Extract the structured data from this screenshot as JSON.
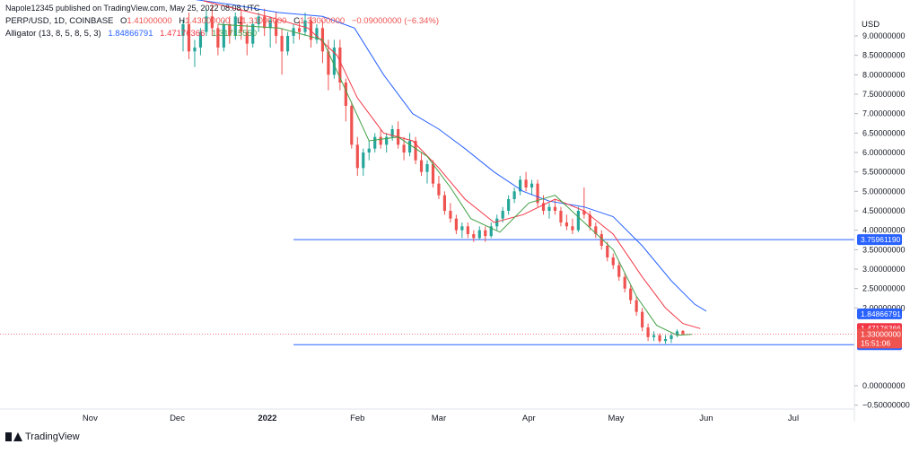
{
  "header": {
    "published": "Napole12345 published on TradingView.com, May 25, 2022 08:08 UTC",
    "symbol": "PERP/USD, 1D, COINBASE",
    "open_label": "O",
    "open": "1.41000000",
    "high_label": "H",
    "high": "1.43000000",
    "low_label": "L",
    "low": "1.31000000",
    "close_label": "C",
    "close": "1.33000000",
    "change": "−0.09000000 (−6.34%)",
    "alligator_label": "Alligator (13, 8, 5, 8, 5, 3)",
    "alligator_jaw": "1.84866791",
    "alligator_teeth": "1.47176366",
    "alligator_lips": "1.31715550"
  },
  "footer": {
    "brand": "TradingView"
  },
  "colors": {
    "up": "#26a69a",
    "down": "#ef5350",
    "jaw": "#2962ff",
    "teeth": "#f23645",
    "lips": "#43a047",
    "hline": "#2962ff",
    "text": "#131722",
    "grid": "#f0f3fa"
  },
  "chart_data": {
    "type": "candlestick",
    "currency": "USD",
    "y_range": [
      -0.6,
      9.6
    ],
    "y_ticks": [
      "9.00000000",
      "8.50000000",
      "8.00000000",
      "7.50000000",
      "7.00000000",
      "6.50000000",
      "6.00000000",
      "5.50000000",
      "5.00000000",
      "4.50000000",
      "4.00000000",
      "3.50000000",
      "3.00000000",
      "2.50000000",
      "2.00000000",
      "0.00000000",
      "−0.50000000"
    ],
    "y_tick_values": [
      9.0,
      8.5,
      8.0,
      7.5,
      7.0,
      6.5,
      6.0,
      5.5,
      5.0,
      4.5,
      4.0,
      3.5,
      3.0,
      2.5,
      2.0,
      0.0,
      -0.5
    ],
    "x_ticks": [
      {
        "label": "Nov",
        "date": "2021-11-01"
      },
      {
        "label": "Dec",
        "date": "2021-12-01"
      },
      {
        "label": "2022",
        "date": "2022-01-01",
        "bold": true
      },
      {
        "label": "Feb",
        "date": "2022-02-01"
      },
      {
        "label": "Mar",
        "date": "2022-03-01"
      },
      {
        "label": "Apr",
        "date": "2022-04-01"
      },
      {
        "label": "May",
        "date": "2022-05-01"
      },
      {
        "label": "Jun",
        "date": "2022-06-01"
      },
      {
        "label": "Jul",
        "date": "2022-07-01"
      }
    ],
    "x_range": [
      "2021-10-01",
      "2022-07-22"
    ],
    "horizontal_lines": [
      {
        "value": 3.7596119,
        "label": "3.75961190",
        "from_date": "2022-01-10"
      },
      {
        "value": 1.05507797,
        "label": "1.05507797",
        "from_date": "2022-01-10"
      }
    ],
    "last_price": {
      "value": 1.33,
      "label": "1.33000000",
      "countdown": "15:51:06"
    },
    "price_labels": [
      {
        "value": 1.84866791,
        "label": "1.84866791",
        "color": "#2962ff"
      },
      {
        "value": 1.47176366,
        "label": "1.47176366",
        "color": "#f23645"
      },
      {
        "value": 1.3171555,
        "label": "1.31715550",
        "color": "#43a047"
      }
    ],
    "series": [
      {
        "name": "jaw",
        "kind": "line",
        "color": "#2962ff",
        "points": [
          [
            "2021-12-01",
            10.0
          ],
          [
            "2021-12-20",
            9.8
          ],
          [
            "2022-01-05",
            9.6
          ],
          [
            "2022-01-20",
            9.5
          ],
          [
            "2022-01-31",
            9.2
          ],
          [
            "2022-02-10",
            8.0
          ],
          [
            "2022-02-20",
            7.0
          ],
          [
            "2022-03-01",
            6.6
          ],
          [
            "2022-03-10",
            6.1
          ],
          [
            "2022-03-20",
            5.5
          ],
          [
            "2022-03-30",
            5.0
          ],
          [
            "2022-04-08",
            4.75
          ],
          [
            "2022-04-20",
            4.6
          ],
          [
            "2022-04-30",
            4.35
          ],
          [
            "2022-05-10",
            3.6
          ],
          [
            "2022-05-20",
            2.7
          ],
          [
            "2022-05-28",
            2.1
          ],
          [
            "2022-06-01",
            1.92
          ]
        ]
      },
      {
        "name": "teeth",
        "kind": "line",
        "color": "#f23645",
        "points": [
          [
            "2021-12-10",
            9.9
          ],
          [
            "2022-01-01",
            9.5
          ],
          [
            "2022-01-15",
            9.2
          ],
          [
            "2022-01-25",
            8.5
          ],
          [
            "2022-02-01",
            7.4
          ],
          [
            "2022-02-10",
            6.5
          ],
          [
            "2022-02-20",
            6.3
          ],
          [
            "2022-03-01",
            5.6
          ],
          [
            "2022-03-10",
            4.8
          ],
          [
            "2022-03-20",
            4.2
          ],
          [
            "2022-03-30",
            4.4
          ],
          [
            "2022-04-10",
            4.8
          ],
          [
            "2022-04-20",
            4.5
          ],
          [
            "2022-04-30",
            3.9
          ],
          [
            "2022-05-10",
            2.8
          ],
          [
            "2022-05-18",
            2.0
          ],
          [
            "2022-05-24",
            1.6
          ],
          [
            "2022-05-30",
            1.47
          ]
        ]
      },
      {
        "name": "lips",
        "kind": "line",
        "color": "#43a047",
        "points": [
          [
            "2021-12-15",
            9.3
          ],
          [
            "2022-01-05",
            9.2
          ],
          [
            "2022-01-20",
            8.9
          ],
          [
            "2022-01-28",
            7.6
          ],
          [
            "2022-02-05",
            6.3
          ],
          [
            "2022-02-15",
            6.4
          ],
          [
            "2022-02-25",
            5.9
          ],
          [
            "2022-03-05",
            5.1
          ],
          [
            "2022-03-12",
            4.3
          ],
          [
            "2022-03-22",
            3.95
          ],
          [
            "2022-04-01",
            4.7
          ],
          [
            "2022-04-10",
            4.9
          ],
          [
            "2022-04-20",
            4.2
          ],
          [
            "2022-04-30",
            3.5
          ],
          [
            "2022-05-08",
            2.3
          ],
          [
            "2022-05-15",
            1.55
          ],
          [
            "2022-05-22",
            1.3
          ],
          [
            "2022-05-27",
            1.32
          ]
        ]
      }
    ],
    "candles": [
      [
        "2021-12-03",
        9.0,
        9.4,
        8.6,
        9.3
      ],
      [
        "2021-12-05",
        9.3,
        9.6,
        8.4,
        8.6
      ],
      [
        "2021-12-07",
        8.6,
        8.9,
        8.2,
        8.7
      ],
      [
        "2021-12-09",
        8.7,
        9.2,
        8.5,
        9.1
      ],
      [
        "2021-12-11",
        9.1,
        9.7,
        9.0,
        9.5
      ],
      [
        "2021-12-13",
        9.5,
        9.8,
        9.0,
        9.2
      ],
      [
        "2021-12-15",
        9.2,
        9.3,
        8.5,
        8.7
      ],
      [
        "2021-12-17",
        8.7,
        9.4,
        8.6,
        9.3
      ],
      [
        "2021-12-19",
        9.3,
        9.5,
        8.8,
        9.0
      ],
      [
        "2021-12-21",
        9.0,
        9.6,
        8.9,
        9.5
      ],
      [
        "2021-12-23",
        9.5,
        9.7,
        8.9,
        9.1
      ],
      [
        "2021-12-25",
        9.1,
        9.3,
        8.5,
        8.8
      ],
      [
        "2021-12-27",
        8.8,
        9.4,
        8.7,
        9.3
      ],
      [
        "2021-12-29",
        9.3,
        9.6,
        9.1,
        9.5
      ],
      [
        "2021-12-31",
        9.5,
        9.7,
        9.0,
        9.2
      ],
      [
        "2022-01-02",
        9.2,
        9.5,
        8.7,
        9.4
      ],
      [
        "2022-01-04",
        9.4,
        9.6,
        8.8,
        9.0
      ],
      [
        "2022-01-06",
        9.0,
        9.2,
        8.0,
        8.6
      ],
      [
        "2022-01-08",
        8.6,
        9.1,
        8.5,
        9.0
      ],
      [
        "2022-01-10",
        9.0,
        9.3,
        8.8,
        9.2
      ],
      [
        "2022-01-12",
        9.2,
        9.4,
        8.9,
        9.1
      ],
      [
        "2022-01-14",
        9.1,
        9.6,
        9.0,
        9.4
      ],
      [
        "2022-01-16",
        9.4,
        9.5,
        8.7,
        8.9
      ],
      [
        "2022-01-18",
        8.9,
        9.3,
        8.8,
        9.2
      ],
      [
        "2022-01-20",
        9.2,
        9.4,
        8.3,
        8.6
      ],
      [
        "2022-01-22",
        8.6,
        8.9,
        7.6,
        8.0
      ],
      [
        "2022-01-24",
        8.0,
        8.9,
        7.9,
        8.7
      ],
      [
        "2022-01-26",
        8.7,
        8.9,
        7.6,
        7.8
      ],
      [
        "2022-01-28",
        7.8,
        7.9,
        6.8,
        7.2
      ],
      [
        "2022-01-30",
        7.2,
        7.3,
        6.1,
        6.2
      ],
      [
        "2022-02-01",
        6.2,
        6.4,
        5.4,
        5.6
      ],
      [
        "2022-02-03",
        5.6,
        6.1,
        5.4,
        6.0
      ],
      [
        "2022-02-05",
        6.0,
        6.3,
        5.8,
        6.1
      ],
      [
        "2022-02-07",
        6.1,
        6.5,
        6.0,
        6.4
      ],
      [
        "2022-02-09",
        6.4,
        6.6,
        6.1,
        6.2
      ],
      [
        "2022-02-11",
        6.2,
        6.5,
        6.0,
        6.4
      ],
      [
        "2022-02-13",
        6.4,
        6.7,
        6.3,
        6.6
      ],
      [
        "2022-02-15",
        6.6,
        6.8,
        6.1,
        6.2
      ],
      [
        "2022-02-17",
        6.2,
        6.4,
        5.8,
        6.0
      ],
      [
        "2022-02-19",
        6.0,
        6.5,
        5.9,
        6.3
      ],
      [
        "2022-02-21",
        6.3,
        6.4,
        5.7,
        5.8
      ],
      [
        "2022-02-23",
        5.8,
        6.0,
        5.4,
        5.5
      ],
      [
        "2022-02-25",
        5.5,
        5.8,
        5.2,
        5.7
      ],
      [
        "2022-02-27",
        5.7,
        5.8,
        5.1,
        5.2
      ],
      [
        "2022-03-01",
        5.2,
        5.4,
        4.8,
        4.9
      ],
      [
        "2022-03-03",
        4.9,
        5.0,
        4.4,
        4.5
      ],
      [
        "2022-03-05",
        4.5,
        4.7,
        4.2,
        4.3
      ],
      [
        "2022-03-07",
        4.3,
        4.4,
        3.9,
        4.0
      ],
      [
        "2022-03-09",
        4.0,
        4.2,
        3.8,
        4.1
      ],
      [
        "2022-03-11",
        4.1,
        4.2,
        3.8,
        3.9
      ],
      [
        "2022-03-13",
        3.9,
        4.0,
        3.7,
        3.8
      ],
      [
        "2022-03-15",
        3.8,
        4.1,
        3.75,
        4.0
      ],
      [
        "2022-03-17",
        4.0,
        4.1,
        3.7,
        3.85
      ],
      [
        "2022-03-19",
        3.85,
        4.2,
        3.8,
        4.1
      ],
      [
        "2022-03-21",
        4.1,
        4.4,
        4.0,
        4.3
      ],
      [
        "2022-03-23",
        4.3,
        4.6,
        4.2,
        4.5
      ],
      [
        "2022-03-25",
        4.5,
        4.9,
        4.4,
        4.8
      ],
      [
        "2022-03-27",
        4.8,
        5.1,
        4.7,
        5.0
      ],
      [
        "2022-03-29",
        5.0,
        5.4,
        4.9,
        5.3
      ],
      [
        "2022-03-31",
        5.3,
        5.5,
        5.0,
        5.1
      ],
      [
        "2022-04-02",
        5.1,
        5.3,
        4.9,
        5.2
      ],
      [
        "2022-04-04",
        5.2,
        5.3,
        4.6,
        4.7
      ],
      [
        "2022-04-06",
        4.7,
        4.9,
        4.4,
        4.5
      ],
      [
        "2022-04-08",
        4.5,
        4.7,
        4.3,
        4.6
      ],
      [
        "2022-04-10",
        4.6,
        4.8,
        4.4,
        4.5
      ],
      [
        "2022-04-12",
        4.5,
        4.6,
        4.1,
        4.2
      ],
      [
        "2022-04-14",
        4.2,
        4.4,
        4.0,
        4.1
      ],
      [
        "2022-04-16",
        4.1,
        4.3,
        3.9,
        4.0
      ],
      [
        "2022-04-18",
        4.0,
        4.6,
        3.95,
        4.5
      ],
      [
        "2022-04-20",
        4.5,
        5.1,
        4.3,
        4.4
      ],
      [
        "2022-04-22",
        4.4,
        4.5,
        4.0,
        4.1
      ],
      [
        "2022-04-24",
        4.1,
        4.2,
        3.8,
        3.9
      ],
      [
        "2022-04-26",
        3.9,
        4.0,
        3.5,
        3.6
      ],
      [
        "2022-04-28",
        3.6,
        3.7,
        3.2,
        3.3
      ],
      [
        "2022-04-30",
        3.3,
        3.4,
        3.0,
        3.1
      ],
      [
        "2022-05-02",
        3.1,
        3.2,
        2.7,
        2.8
      ],
      [
        "2022-05-04",
        2.8,
        2.9,
        2.4,
        2.5
      ],
      [
        "2022-05-06",
        2.5,
        2.6,
        2.1,
        2.2
      ],
      [
        "2022-05-08",
        2.2,
        2.3,
        1.8,
        1.9
      ],
      [
        "2022-05-10",
        1.9,
        2.0,
        1.4,
        1.5
      ],
      [
        "2022-05-12",
        1.5,
        1.6,
        1.15,
        1.25
      ],
      [
        "2022-05-14",
        1.25,
        1.4,
        1.15,
        1.3
      ],
      [
        "2022-05-16",
        1.3,
        1.35,
        1.1,
        1.15
      ],
      [
        "2022-05-18",
        1.15,
        1.3,
        1.08,
        1.2
      ],
      [
        "2022-05-20",
        1.2,
        1.35,
        1.1,
        1.3
      ],
      [
        "2022-05-22",
        1.3,
        1.45,
        1.25,
        1.4
      ],
      [
        "2022-05-24",
        1.41,
        1.43,
        1.31,
        1.33
      ]
    ]
  }
}
